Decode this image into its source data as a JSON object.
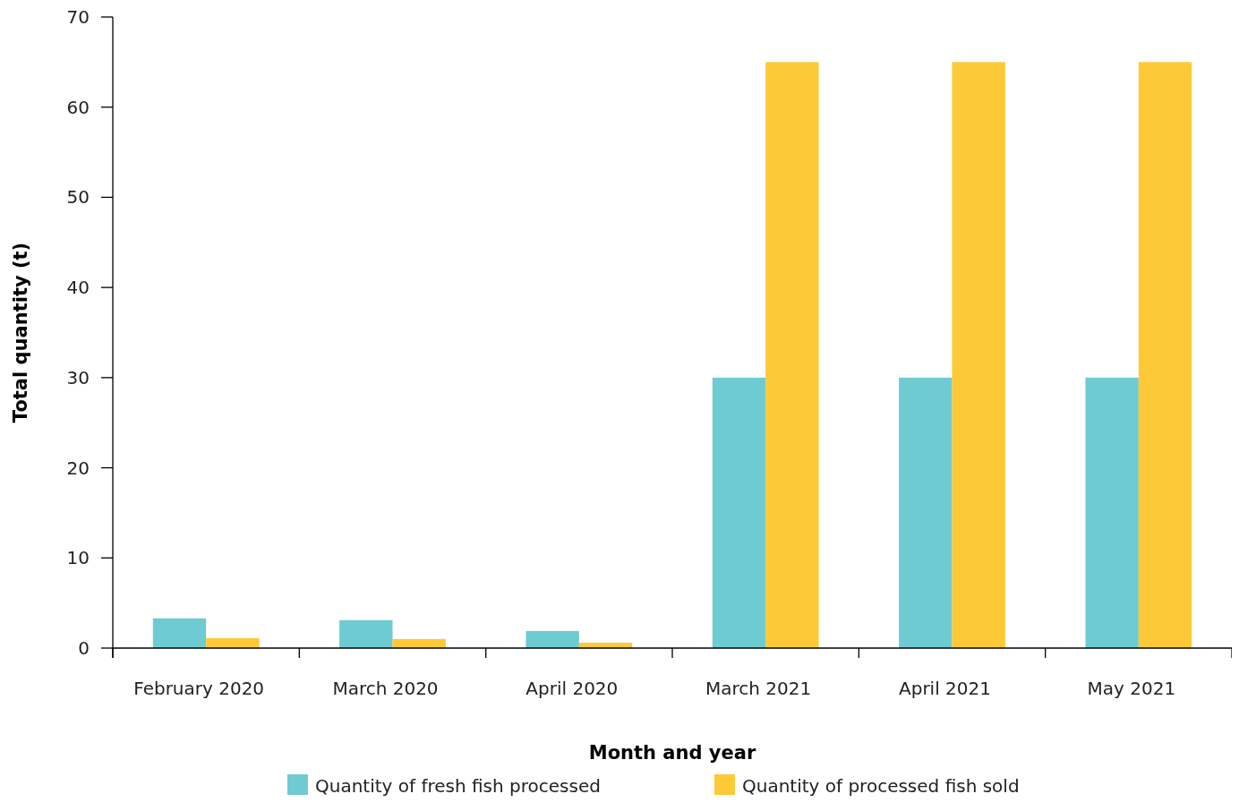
{
  "chart_data": {
    "type": "bar",
    "xlabel": "Month and year",
    "ylabel": "Total quantity (t)",
    "categories": [
      "February 2020",
      "March 2020",
      "April 2020",
      "March 2021",
      "April 2021",
      "May 2021"
    ],
    "series": [
      {
        "name": "Quantity of fresh fish processed",
        "color": "#6ecbd1",
        "values": [
          3.3,
          3.1,
          1.9,
          30,
          30,
          30
        ]
      },
      {
        "name": "Quantity of processed fish sold",
        "color": "#fec936",
        "values": [
          1.1,
          1.0,
          0.6,
          65,
          65,
          65
        ]
      }
    ],
    "ylim": [
      0,
      70
    ],
    "yticks": [
      0,
      10,
      20,
      30,
      40,
      50,
      60,
      70
    ],
    "grid": false,
    "legend": "bottom"
  }
}
